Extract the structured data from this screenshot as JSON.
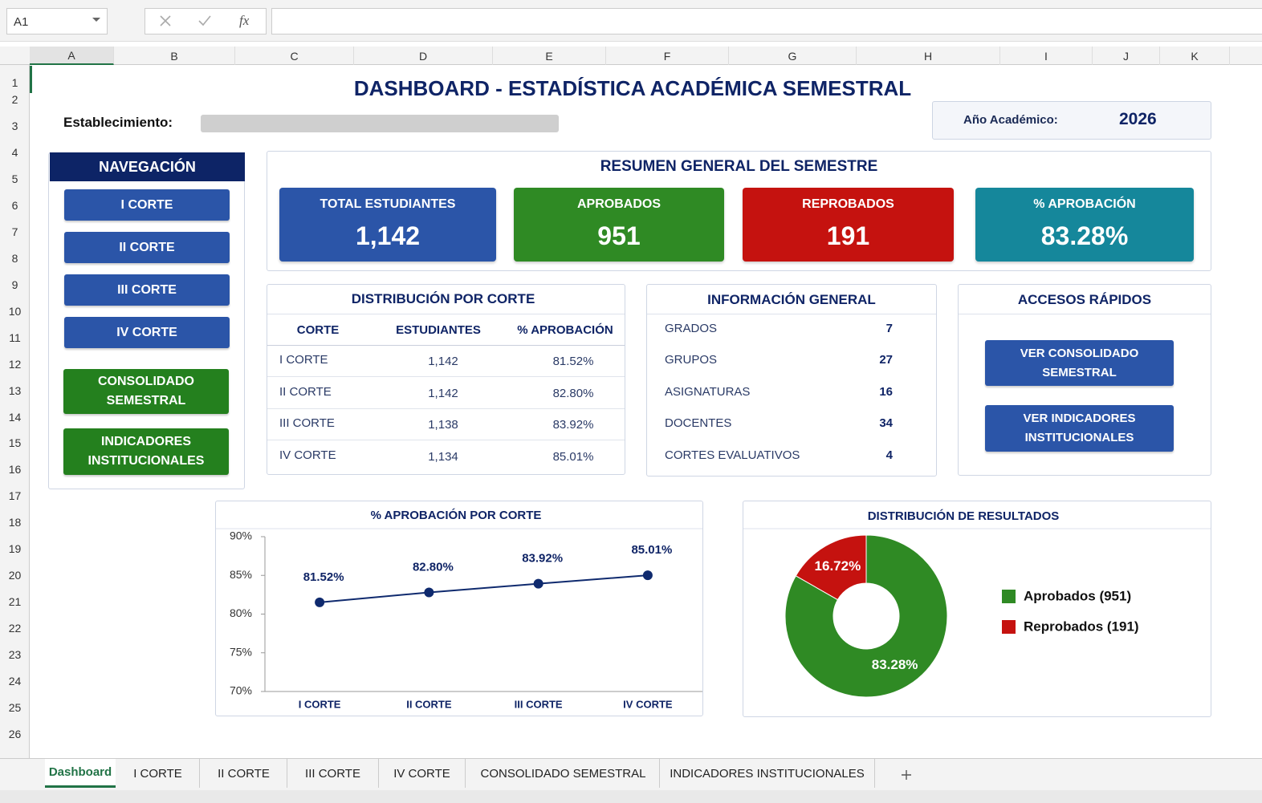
{
  "formula_bar": {
    "cell": "A1",
    "function_icon": "fx"
  },
  "columns": [
    "A",
    "B",
    "C",
    "D",
    "E",
    "F",
    "G",
    "H",
    "I",
    "J",
    "K"
  ],
  "rows": [
    1,
    2,
    3,
    4,
    5,
    6,
    7,
    8,
    9,
    10,
    11,
    12,
    13,
    14,
    15,
    16,
    17,
    18,
    19,
    20,
    21,
    22,
    23,
    24,
    25,
    26
  ],
  "title": "DASHBOARD - ESTADÍSTICA ACADÉMICA SEMESTRAL",
  "establecimiento_label": "Establecimiento:",
  "year": {
    "label": "Año Académico:",
    "value": "2026"
  },
  "nav": {
    "title": "NAVEGACIÓN",
    "buttons": [
      "I CORTE",
      "II CORTE",
      "III CORTE",
      "IV CORTE",
      "CONSOLIDADO SEMESTRAL",
      "INDICADORES INSTITUCIONALES"
    ]
  },
  "summary": {
    "title": "RESUMEN GENERAL DEL SEMESTRE",
    "cards": [
      {
        "label": "TOTAL ESTUDIANTES",
        "value": "1,142",
        "color": "#2b55a8"
      },
      {
        "label": "APROBADOS",
        "value": "951",
        "color": "#2f8a24"
      },
      {
        "label": "REPROBADOS",
        "value": "191",
        "color": "#c5120f"
      },
      {
        "label": "% APROBACIÓN",
        "value": "83.28%",
        "color": "#15879b"
      }
    ]
  },
  "distribution": {
    "title": "DISTRIBUCIÓN POR CORTE",
    "headers": [
      "CORTE",
      "ESTUDIANTES",
      "% APROBACIÓN"
    ],
    "rows": [
      [
        "I CORTE",
        "1,142",
        "81.52%"
      ],
      [
        "II CORTE",
        "1,142",
        "82.80%"
      ],
      [
        "III CORTE",
        "1,138",
        "83.92%"
      ],
      [
        "IV CORTE",
        "1,134",
        "85.01%"
      ]
    ]
  },
  "info": {
    "title": "INFORMACIÓN GENERAL",
    "rows": [
      [
        "GRADOS",
        "7"
      ],
      [
        "GRUPOS",
        "27"
      ],
      [
        "ASIGNATURAS",
        "16"
      ],
      [
        "DOCENTES",
        "34"
      ],
      [
        "CORTES EVALUATIVOS",
        "4"
      ]
    ]
  },
  "quick": {
    "title": "ACCESOS RÁPIDOS",
    "buttons": [
      "VER CONSOLIDADO SEMESTRAL",
      "VER INDICADORES INSTITUCIONALES"
    ]
  },
  "chart_data": [
    {
      "type": "line",
      "title": "% APROBACIÓN POR CORTE",
      "categories": [
        "I CORTE",
        "II CORTE",
        "III CORTE",
        "IV CORTE"
      ],
      "values": [
        81.52,
        82.8,
        83.92,
        85.01
      ],
      "value_labels": [
        "81.52%",
        "82.80%",
        "83.92%",
        "85.01%"
      ],
      "color": "#0f2a6e",
      "ylim": [
        70,
        90
      ],
      "grid": false,
      "yticks": [
        {
          "value": 70,
          "label": "70%"
        },
        {
          "value": 75,
          "label": "75%"
        },
        {
          "value": 80,
          "label": "80%"
        },
        {
          "value": 85,
          "label": "85%"
        },
        {
          "value": 90,
          "label": "90%"
        }
      ]
    },
    {
      "type": "pie",
      "donut": true,
      "title": "DISTRIBUCIÓN DE RESULTADOS",
      "categories": [
        "Aprobados (951)",
        "Reprobados (191)"
      ],
      "values": [
        83.28,
        16.72
      ],
      "value_labels": [
        "83.28%",
        "16.72%"
      ],
      "colors": [
        "#2f8a24",
        "#c5120f"
      ],
      "legend": "right"
    }
  ],
  "tabs": {
    "active": 0,
    "items": [
      "Dashboard",
      "I CORTE",
      "II CORTE",
      "III CORTE",
      "IV CORTE",
      "CONSOLIDADO SEMESTRAL",
      "INDICADORES INSTITUCIONALES"
    ]
  }
}
